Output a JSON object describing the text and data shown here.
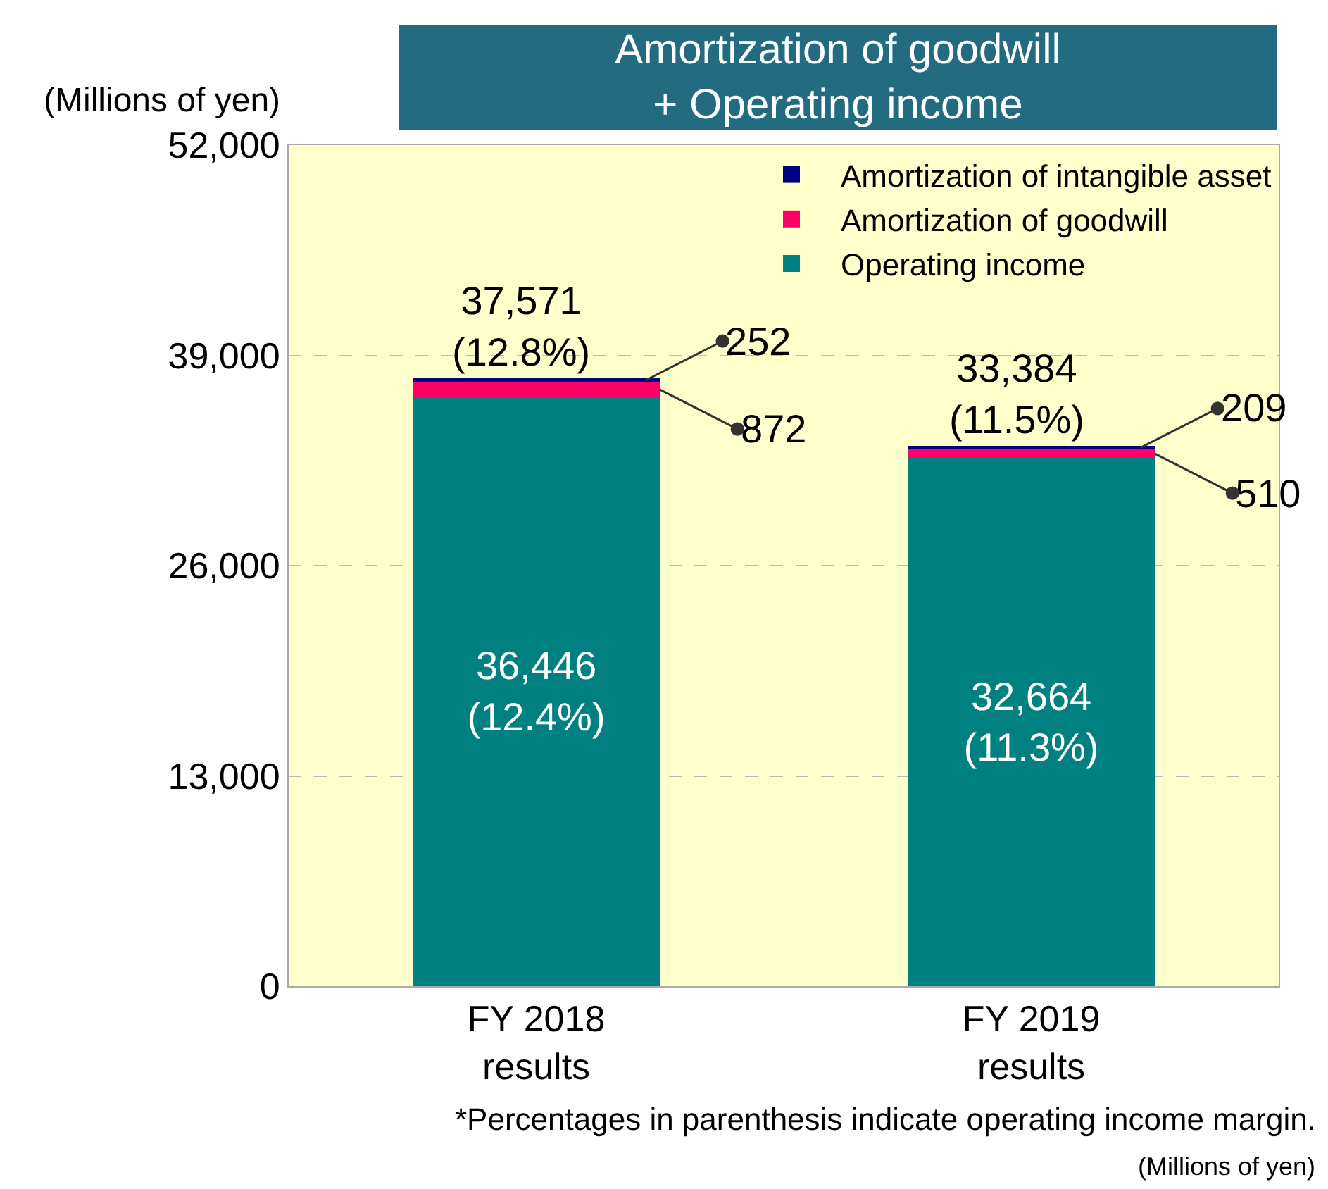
{
  "chart_data": {
    "type": "bar",
    "stacked": true,
    "title": "Amortization of goodwill\n+ Operating income",
    "ylabel": "(Millions of yen)",
    "categories": [
      "FY 2018\nresults",
      "FY 2019\nresults"
    ],
    "series": [
      {
        "name": "Operating income",
        "color": "#008080",
        "values": [
          36446,
          32664
        ],
        "value_labels": [
          "36,446\n(12.4%)",
          "32,664\n(11.3%)"
        ]
      },
      {
        "name": "Amortization of goodwill",
        "color": "#ff0066",
        "values": [
          872,
          510
        ],
        "value_labels": [
          "872",
          "510"
        ]
      },
      {
        "name": "Amortization of intangible asset",
        "color": "#000080",
        "values": [
          252,
          209
        ],
        "value_labels": [
          "252",
          "209"
        ]
      }
    ],
    "totals": [
      "37,571\n(12.8%)",
      "33,384\n(11.5%)"
    ],
    "ylim": [
      0,
      52000
    ],
    "yticks": [
      {
        "value": 0,
        "label": "0"
      },
      {
        "value": 13000,
        "label": "13,000"
      },
      {
        "value": 26000,
        "label": "26,000"
      },
      {
        "value": 39000,
        "label": "39,000"
      },
      {
        "value": 52000,
        "label": "52,000"
      }
    ],
    "grid": "y",
    "legend": "top right",
    "annotations": [
      "*Percentages in parenthesis indicate operating income margin.",
      "(Millions of yen)"
    ]
  }
}
